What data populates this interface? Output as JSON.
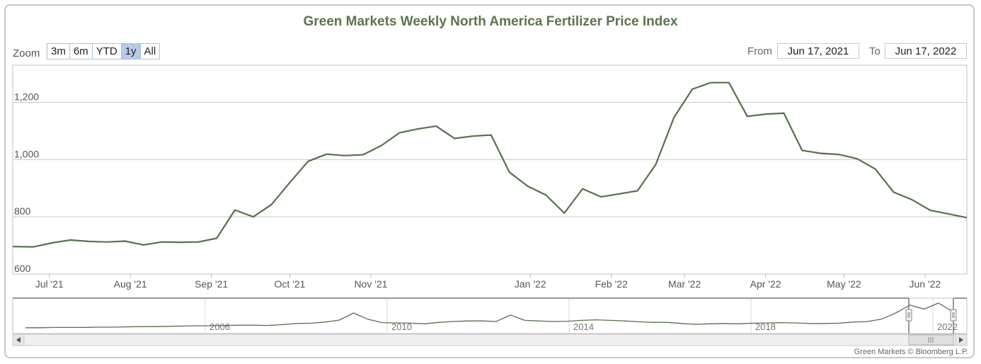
{
  "chart_data": {
    "type": "line",
    "title": "Green Markets Weekly North America Fertilizer Price Index",
    "x_start": "2021-06-17",
    "x_end": "2022-06-17",
    "ylim": [
      600,
      1330
    ],
    "y_ticks": [
      {
        "value": 600,
        "label": "600"
      },
      {
        "value": 800,
        "label": "800"
      },
      {
        "value": 1000,
        "label": "1,000"
      },
      {
        "value": 1200,
        "label": "1,200"
      }
    ],
    "x_ticks": [
      {
        "date": "2021-07-01",
        "label": "Jul '21"
      },
      {
        "date": "2021-08-01",
        "label": "Aug '21"
      },
      {
        "date": "2021-09-01",
        "label": "Sep '21"
      },
      {
        "date": "2021-10-01",
        "label": "Oct '21"
      },
      {
        "date": "2021-11-01",
        "label": "Nov '21"
      },
      {
        "date": "2022-01-01",
        "label": "Jan '22"
      },
      {
        "date": "2022-02-01",
        "label": "Feb '22"
      },
      {
        "date": "2022-03-01",
        "label": "Mar '22"
      },
      {
        "date": "2022-04-01",
        "label": "Apr '22"
      },
      {
        "date": "2022-05-01",
        "label": "May '22"
      },
      {
        "date": "2022-06-01",
        "label": "Jun '22"
      }
    ],
    "grid": true,
    "color": "#56704d",
    "points": [
      {
        "x": "2021-06-17",
        "y": 696
      },
      {
        "x": "2021-06-25",
        "y": 695
      },
      {
        "x": "2021-07-02",
        "y": 709
      },
      {
        "x": "2021-07-09",
        "y": 719
      },
      {
        "x": "2021-07-16",
        "y": 714
      },
      {
        "x": "2021-07-23",
        "y": 712
      },
      {
        "x": "2021-07-30",
        "y": 715
      },
      {
        "x": "2021-08-06",
        "y": 702
      },
      {
        "x": "2021-08-13",
        "y": 712
      },
      {
        "x": "2021-08-20",
        "y": 711
      },
      {
        "x": "2021-08-27",
        "y": 712
      },
      {
        "x": "2021-09-03",
        "y": 725
      },
      {
        "x": "2021-09-10",
        "y": 824
      },
      {
        "x": "2021-09-17",
        "y": 800
      },
      {
        "x": "2021-09-24",
        "y": 843
      },
      {
        "x": "2021-10-01",
        "y": 920
      },
      {
        "x": "2021-10-08",
        "y": 994
      },
      {
        "x": "2021-10-15",
        "y": 1019
      },
      {
        "x": "2021-10-22",
        "y": 1014
      },
      {
        "x": "2021-10-29",
        "y": 1017
      },
      {
        "x": "2021-11-05",
        "y": 1049
      },
      {
        "x": "2021-11-12",
        "y": 1094
      },
      {
        "x": "2021-11-19",
        "y": 1107
      },
      {
        "x": "2021-11-26",
        "y": 1117
      },
      {
        "x": "2021-12-03",
        "y": 1074
      },
      {
        "x": "2021-12-10",
        "y": 1082
      },
      {
        "x": "2021-12-17",
        "y": 1086
      },
      {
        "x": "2021-12-24",
        "y": 956
      },
      {
        "x": "2021-12-31",
        "y": 907
      },
      {
        "x": "2022-01-07",
        "y": 876
      },
      {
        "x": "2022-01-14",
        "y": 813
      },
      {
        "x": "2022-01-21",
        "y": 898
      },
      {
        "x": "2022-01-28",
        "y": 870
      },
      {
        "x": "2022-02-04",
        "y": 880
      },
      {
        "x": "2022-02-11",
        "y": 891
      },
      {
        "x": "2022-02-18",
        "y": 983
      },
      {
        "x": "2022-02-25",
        "y": 1148
      },
      {
        "x": "2022-03-04",
        "y": 1246
      },
      {
        "x": "2022-03-11",
        "y": 1269
      },
      {
        "x": "2022-03-18",
        "y": 1269
      },
      {
        "x": "2022-03-25",
        "y": 1151
      },
      {
        "x": "2022-04-01",
        "y": 1159
      },
      {
        "x": "2022-04-08",
        "y": 1162
      },
      {
        "x": "2022-04-15",
        "y": 1032
      },
      {
        "x": "2022-04-22",
        "y": 1022
      },
      {
        "x": "2022-04-29",
        "y": 1018
      },
      {
        "x": "2022-05-06",
        "y": 1003
      },
      {
        "x": "2022-05-13",
        "y": 967
      },
      {
        "x": "2022-05-20",
        "y": 886
      },
      {
        "x": "2022-05-27",
        "y": 860
      },
      {
        "x": "2022-06-03",
        "y": 823
      }
    ]
  },
  "navigator": {
    "x_ticks": [
      "2006",
      "2010",
      "2014",
      "2018",
      "2022"
    ],
    "series_relative": [
      0.92,
      0.92,
      0.91,
      0.91,
      0.91,
      0.9,
      0.9,
      0.89,
      0.88,
      0.88,
      0.87,
      0.86,
      0.85,
      0.85,
      0.84,
      0.83,
      0.83,
      0.84,
      0.81,
      0.77,
      0.76,
      0.72,
      0.65,
      0.4,
      0.62,
      0.74,
      0.75,
      0.76,
      0.78,
      0.73,
      0.7,
      0.68,
      0.68,
      0.7,
      0.47,
      0.66,
      0.68,
      0.7,
      0.69,
      0.66,
      0.64,
      0.66,
      0.68,
      0.71,
      0.73,
      0.73,
      0.77,
      0.8,
      0.78,
      0.77,
      0.78,
      0.76,
      0.75,
      0.74,
      0.75,
      0.77,
      0.77,
      0.76,
      0.72,
      0.7,
      0.62,
      0.4,
      0.12,
      0.26,
      0.05,
      0.35
    ]
  },
  "zoom": {
    "label": "Zoom",
    "buttons": [
      {
        "id": "3m",
        "label": "3m"
      },
      {
        "id": "6m",
        "label": "6m"
      },
      {
        "id": "ytd",
        "label": "YTD"
      },
      {
        "id": "1y",
        "label": "1y",
        "active": true
      },
      {
        "id": "all",
        "label": "All"
      }
    ]
  },
  "range": {
    "from_label": "From",
    "from_value": "Jun 17, 2021",
    "to_label": "To",
    "to_value": "Jun 17, 2022"
  },
  "footer": "Green Markets © Bloomberg L.P."
}
